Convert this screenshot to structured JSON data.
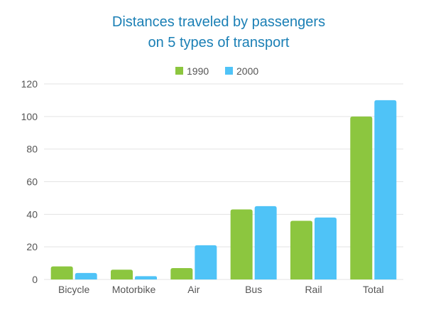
{
  "chart_data": {
    "type": "bar",
    "title_lines": [
      "Distances traveled by passengers",
      "on 5 types of transport"
    ],
    "categories": [
      "Bicycle",
      "Motorbike",
      "Air",
      "Bus",
      "Rail",
      "Total"
    ],
    "series": [
      {
        "name": "1990",
        "color": "#8cc63f",
        "values": [
          8,
          6,
          7,
          43,
          36,
          100
        ]
      },
      {
        "name": "2000",
        "color": "#4fc3f7",
        "values": [
          4,
          2,
          21,
          45,
          38,
          110
        ]
      }
    ],
    "xlabel": "",
    "ylabel": "",
    "ylim": [
      0,
      120
    ],
    "yticks": [
      0,
      20,
      40,
      60,
      80,
      100,
      120
    ],
    "grid": true,
    "legend_position": "top-center"
  }
}
